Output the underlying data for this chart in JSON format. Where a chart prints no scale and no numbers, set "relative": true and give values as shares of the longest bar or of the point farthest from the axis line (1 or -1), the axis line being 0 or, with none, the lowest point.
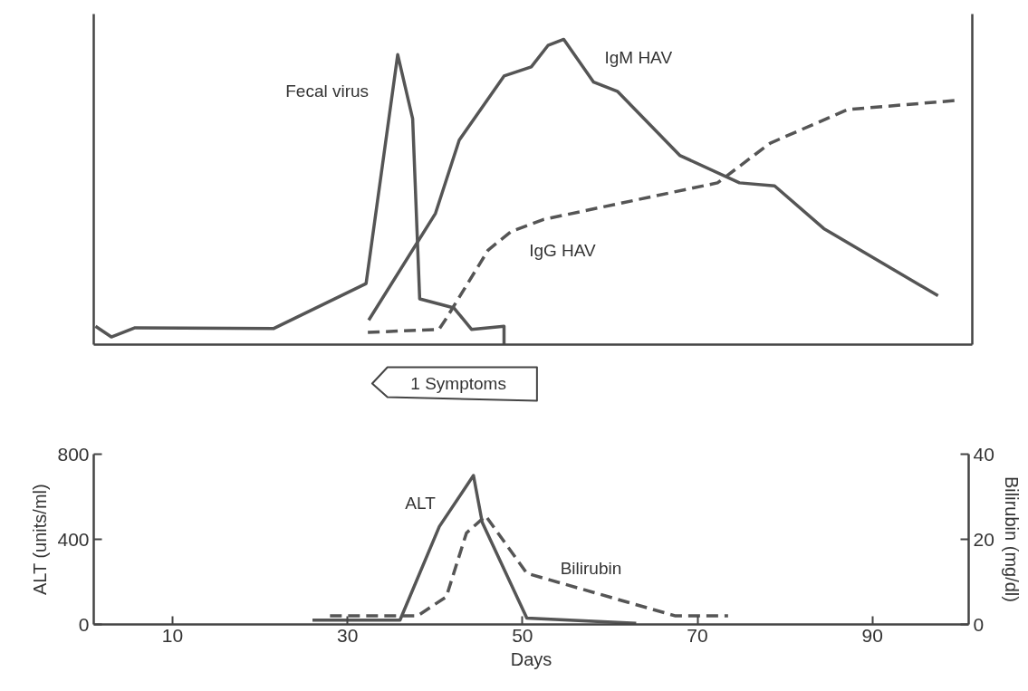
{
  "chart_data": [
    {
      "type": "line",
      "relative": true,
      "xlim": [
        1,
        101
      ],
      "tick_labels": false,
      "annotations": [
        "1 Symptoms"
      ],
      "series": [
        {
          "name": "Fecal virus",
          "color": "#555555",
          "line_style": "solid",
          "x": [
            1.2,
            3,
            5.7,
            21.5,
            32,
            35.6,
            37.3,
            38.1,
            42,
            44,
            47.7,
            47.7
          ],
          "values": [
            0.06,
            0.025,
            0.055,
            0.053,
            0.2,
            0.95,
            0.74,
            0.15,
            0.12,
            0.05,
            0.06,
            0
          ]
        },
        {
          "name": "IgM HAV",
          "color": "#555555",
          "line_style": "solid",
          "x": [
            32.3,
            39.9,
            42.6,
            47.7,
            50.8,
            52.7,
            54.5,
            57.9,
            60.6,
            67.7,
            74.5,
            78.5,
            84.1,
            97.1
          ],
          "values": [
            0.08,
            0.43,
            0.67,
            0.88,
            0.91,
            0.98,
            1,
            0.86,
            0.83,
            0.62,
            0.53,
            0.52,
            0.38,
            0.16
          ]
        },
        {
          "name": "IgG HAV",
          "color": "#555555",
          "line_style": "dashed",
          "x": [
            32.2,
            40.3,
            41,
            45.9,
            48.5,
            52.2,
            72,
            78,
            86.8,
            99.2
          ],
          "values": [
            0.04,
            0.05,
            0.08,
            0.31,
            0.37,
            0.41,
            0.53,
            0.66,
            0.77,
            0.8
          ]
        }
      ]
    },
    {
      "type": "line",
      "xlim": [
        1,
        101
      ],
      "xticks": [
        10,
        30,
        50,
        70,
        90
      ],
      "ylim": [
        0,
        800
      ],
      "yticks": [
        0,
        400,
        800
      ],
      "y2lim": [
        0,
        40
      ],
      "y2ticks": [
        0,
        20,
        40
      ],
      "xlabel": "Days",
      "ylabel": "ALT (units/ml)",
      "y2label": "Bilirubin (mg/dl)",
      "series": [
        {
          "name": "ALT",
          "color": "#555555",
          "line_style": "solid",
          "x": [
            26,
            36,
            40.5,
            44.4,
            45.4,
            50.5,
            63
          ],
          "values": [
            20,
            20,
            460,
            700,
            480,
            30,
            5
          ]
        },
        {
          "name": "Bilirubin",
          "color": "#555555",
          "line_style": "dashed",
          "axis": "y2",
          "x": [
            28,
            38,
            41.3,
            43.6,
            45.8,
            50.5,
            67.5,
            73.5
          ],
          "values": [
            2,
            2,
            6.5,
            21.5,
            25.5,
            12,
            2,
            2
          ]
        }
      ]
    }
  ]
}
